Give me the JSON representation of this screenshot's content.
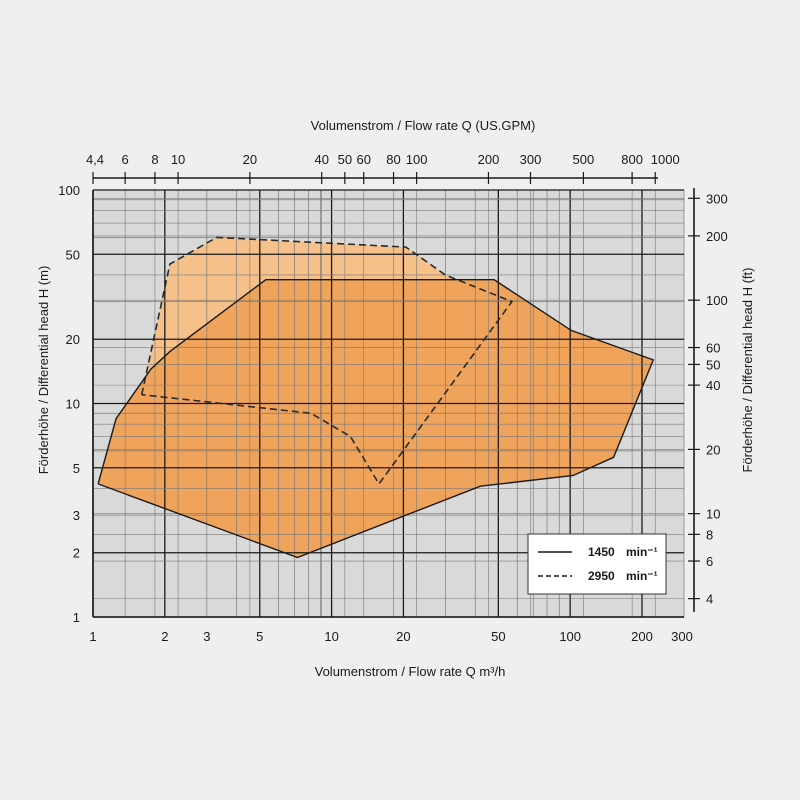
{
  "chart_data": {
    "type": "area",
    "xlabel": "Volumenstrom / Flow rate Q m³/h",
    "x2label": "Volumenstrom / Flow rate Q (US.GPM)",
    "ylabel": "Förderhöhe / Differential head H (m)",
    "y2label": "Förderhöhe / Differential head H (ft)",
    "x_scale": "log",
    "y_scale": "log",
    "xlim": [
      1,
      300
    ],
    "ylim": [
      1,
      100
    ],
    "grid": true,
    "legend_position": "bottom-right",
    "x_ticks": [
      {
        "v": 1,
        "label": "1"
      },
      {
        "v": 2,
        "label": "2"
      },
      {
        "v": 3,
        "label": "3"
      },
      {
        "v": 5,
        "label": "5"
      },
      {
        "v": 10,
        "label": "10"
      },
      {
        "v": 20,
        "label": "20"
      },
      {
        "v": 50,
        "label": "50"
      },
      {
        "v": 100,
        "label": "100"
      },
      {
        "v": 200,
        "label": "200"
      },
      {
        "v": 300,
        "label": "300"
      }
    ],
    "y_ticks": [
      {
        "v": 1,
        "label": "1"
      },
      {
        "v": 2,
        "label": "2"
      },
      {
        "v": 3,
        "label": "3"
      },
      {
        "v": 5,
        "label": "5"
      },
      {
        "v": 10,
        "label": "10"
      },
      {
        "v": 20,
        "label": "20"
      },
      {
        "v": 50,
        "label": "50"
      },
      {
        "v": 100,
        "label": "100"
      }
    ],
    "x2_ticks": [
      {
        "v": 4.4,
        "label": "4,4"
      },
      {
        "v": 6,
        "label": "6"
      },
      {
        "v": 8,
        "label": "8"
      },
      {
        "v": 10,
        "label": "10"
      },
      {
        "v": 20,
        "label": "20"
      },
      {
        "v": 40,
        "label": "40"
      },
      {
        "v": 50,
        "label": "50"
      },
      {
        "v": 60,
        "label": "60"
      },
      {
        "v": 80,
        "label": "80"
      },
      {
        "v": 100,
        "label": "100"
      },
      {
        "v": 200,
        "label": "200"
      },
      {
        "v": 300,
        "label": "300"
      },
      {
        "v": 500,
        "label": "500"
      },
      {
        "v": 800,
        "label": "800"
      },
      {
        "v": 1000,
        "label": "1000"
      }
    ],
    "y2_ticks": [
      {
        "v": 4,
        "label": "4"
      },
      {
        "v": 6,
        "label": "6"
      },
      {
        "v": 8,
        "label": "8"
      },
      {
        "v": 10,
        "label": "10"
      },
      {
        "v": 20,
        "label": "20"
      },
      {
        "v": 40,
        "label": "40"
      },
      {
        "v": 50,
        "label": "50"
      },
      {
        "v": 60,
        "label": "60"
      },
      {
        "v": 100,
        "label": "100"
      },
      {
        "v": 200,
        "label": "200"
      },
      {
        "v": 300,
        "label": "300"
      }
    ],
    "series": [
      {
        "name": "2950 min⁻¹",
        "style": "dashed",
        "color": "#f5c08a",
        "points": [
          [
            1.6,
            11
          ],
          [
            2.1,
            45
          ],
          [
            3.3,
            60
          ],
          [
            20.5,
            54
          ],
          [
            30,
            40
          ],
          [
            57,
            30
          ],
          [
            15.8,
            4.2
          ],
          [
            12,
            7
          ],
          [
            8.2,
            9
          ],
          [
            1.6,
            11
          ]
        ]
      },
      {
        "name": "1450 min⁻¹",
        "style": "solid",
        "color": "#f0a35a",
        "points": [
          [
            1.05,
            4.2
          ],
          [
            1.25,
            8.5
          ],
          [
            1.75,
            14.5
          ],
          [
            2.1,
            17.5
          ],
          [
            5.3,
            38
          ],
          [
            48,
            38
          ],
          [
            101,
            22
          ],
          [
            223,
            16
          ],
          [
            152,
            5.6
          ],
          [
            103,
            4.6
          ],
          [
            42,
            4.1
          ],
          [
            7.2,
            1.9
          ],
          [
            1.05,
            4.2
          ]
        ]
      }
    ]
  },
  "legend": {
    "items": [
      {
        "label": "1450",
        "unit": "min⁻¹",
        "style": "solid"
      },
      {
        "label": "2950",
        "unit": "min⁻¹",
        "style": "dashed"
      }
    ]
  }
}
